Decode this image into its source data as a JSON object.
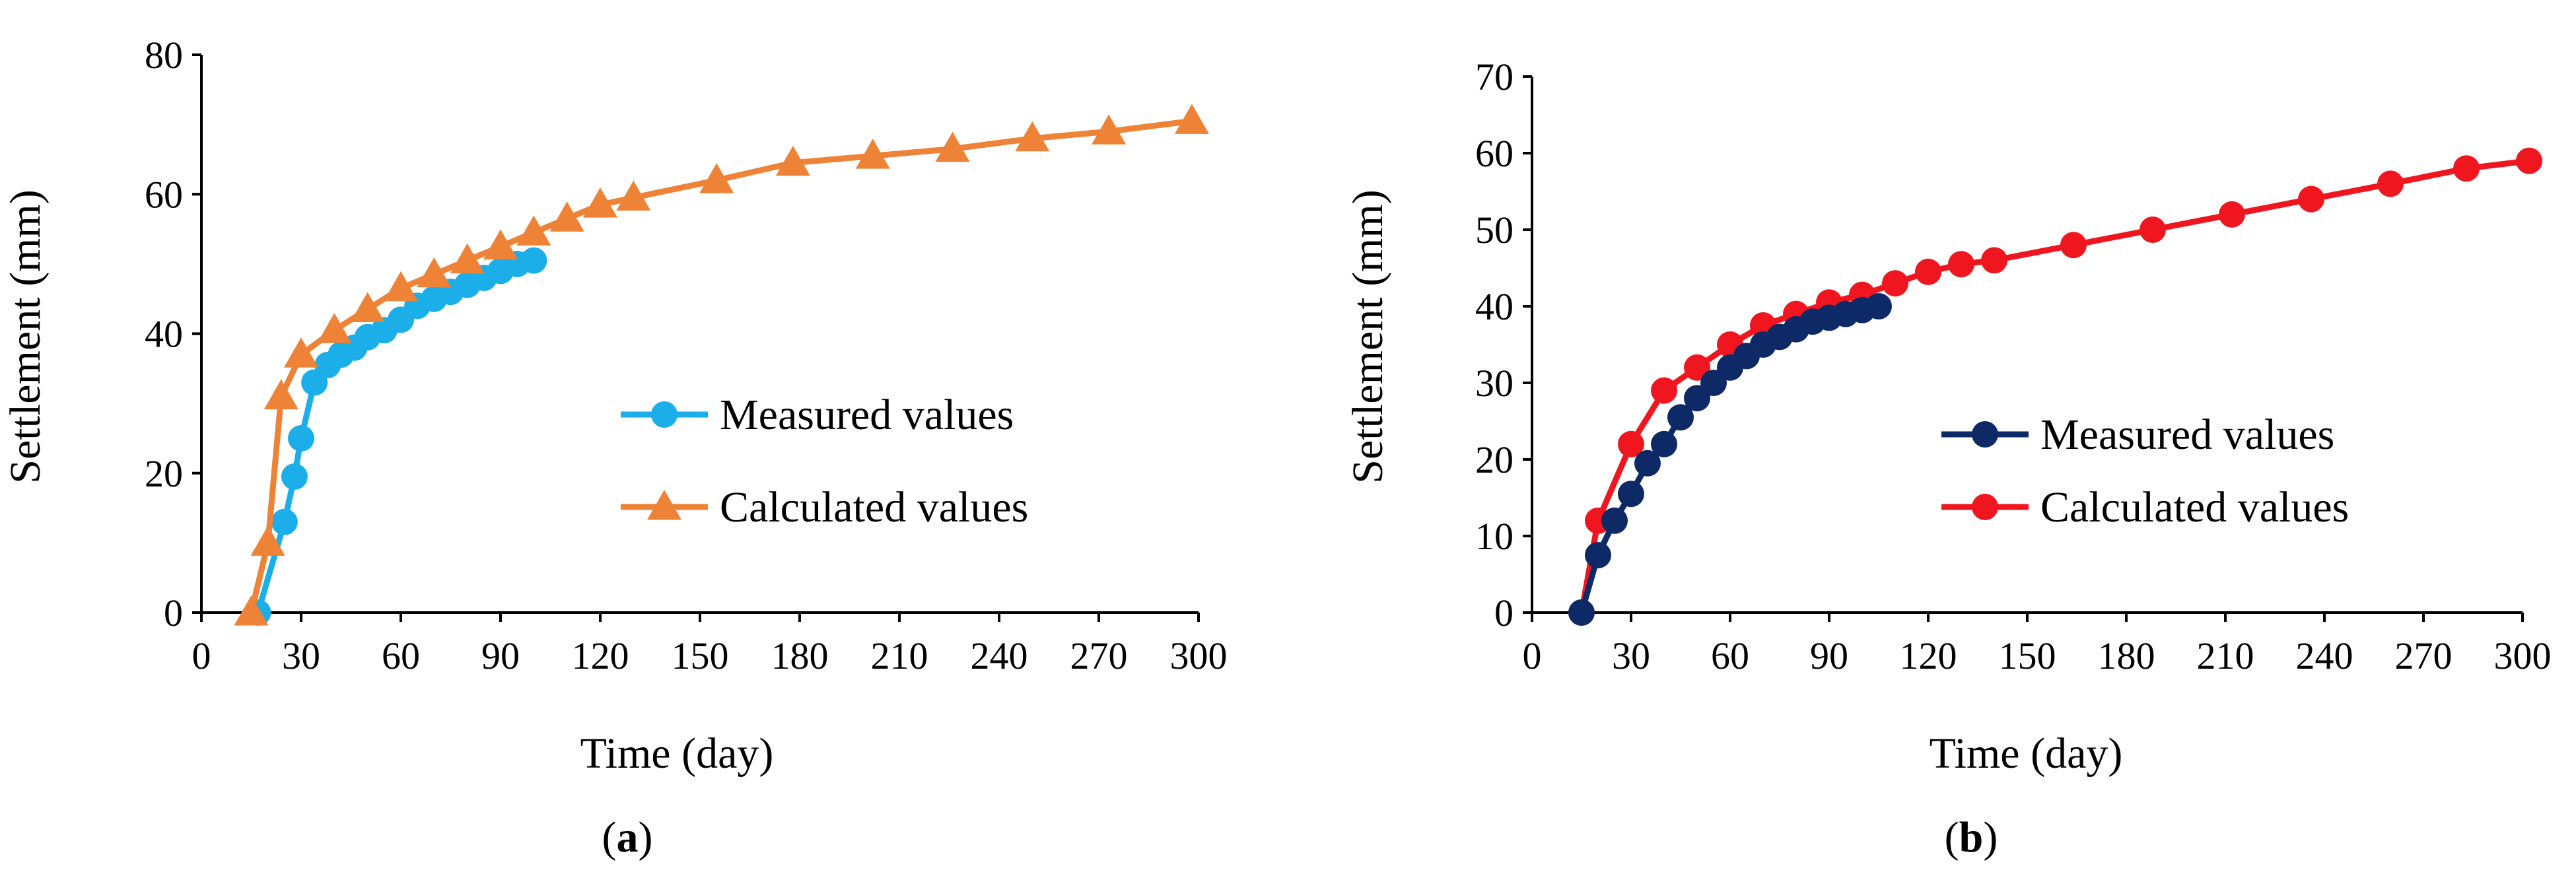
{
  "chart_data": [
    {
      "type": "line",
      "panel_label": "a",
      "xlabel": "Time (day)",
      "ylabel": "Settlement (mm)",
      "xlim": [
        0,
        300
      ],
      "ylim": [
        0,
        80
      ],
      "xticks": [
        0,
        30,
        60,
        90,
        120,
        150,
        180,
        210,
        240,
        270,
        300
      ],
      "yticks": [
        0,
        20,
        40,
        60,
        80
      ],
      "grid": false,
      "legend_position": "right-middle",
      "series": [
        {
          "name": "Measured values",
          "color": "#1BAEE8",
          "marker": "circle",
          "x": [
            17,
            25,
            28,
            30,
            34,
            38,
            42,
            46,
            50,
            55,
            60,
            65,
            70,
            75,
            80,
            85,
            90,
            95,
            100
          ],
          "y": [
            0,
            13,
            19.5,
            25,
            33,
            35.5,
            37,
            38,
            39.5,
            40.5,
            42,
            44,
            45,
            46,
            47,
            48,
            49,
            50,
            50.5
          ]
        },
        {
          "name": "Calculated values",
          "color": "#EE8236",
          "marker": "triangle",
          "x": [
            15,
            20,
            24,
            30,
            40,
            50,
            60,
            70,
            80,
            90,
            100,
            110,
            120,
            130,
            155,
            178,
            202,
            226,
            250,
            273,
            298
          ],
          "y": [
            0,
            10,
            31,
            37,
            40.5,
            43.5,
            46.5,
            48.5,
            50.5,
            52.5,
            54.5,
            56.5,
            58.5,
            59.5,
            62,
            64.5,
            65.5,
            66.5,
            68,
            69,
            70.5
          ]
        }
      ]
    },
    {
      "type": "line",
      "panel_label": "b",
      "xlabel": "Time (day)",
      "ylabel": "Settlement (mm)",
      "xlim": [
        0,
        300
      ],
      "ylim": [
        0,
        70
      ],
      "xticks": [
        0,
        30,
        60,
        90,
        120,
        150,
        180,
        210,
        240,
        270,
        300
      ],
      "yticks": [
        0,
        10,
        20,
        30,
        40,
        50,
        60,
        70
      ],
      "grid": false,
      "legend_position": "right-middle",
      "series": [
        {
          "name": "Measured values",
          "color": "#0E2A66",
          "marker": "circle",
          "x": [
            15,
            20,
            25,
            30,
            35,
            40,
            45,
            50,
            55,
            60,
            65,
            70,
            75,
            80,
            85,
            90,
            95,
            100,
            105
          ],
          "y": [
            0,
            7.5,
            12,
            15.5,
            19.5,
            22,
            25.5,
            28,
            30,
            32,
            33.5,
            35,
            36,
            37,
            38,
            38.5,
            39,
            39.5,
            40
          ]
        },
        {
          "name": "Calculated values",
          "color": "#F01620",
          "marker": "circle",
          "x": [
            15,
            20,
            30,
            40,
            50,
            60,
            70,
            80,
            90,
            100,
            110,
            120,
            130,
            140,
            164,
            188,
            212,
            236,
            260,
            283,
            302
          ],
          "y": [
            0,
            12,
            22,
            29,
            32,
            35,
            37.5,
            39,
            40.5,
            41.5,
            43,
            44.5,
            45.5,
            46,
            48,
            50,
            52,
            54,
            56,
            58,
            59
          ]
        }
      ]
    }
  ]
}
